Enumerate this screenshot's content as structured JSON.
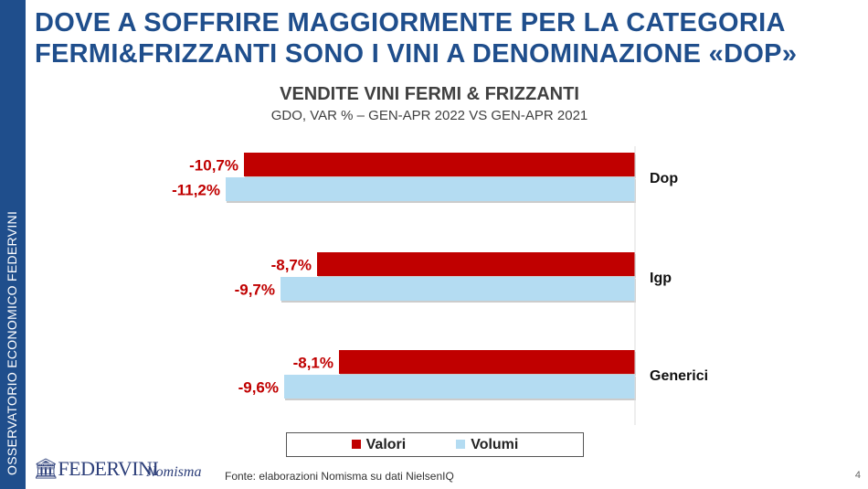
{
  "sidebar": {
    "text": "OSSERVATORIO ECONOMICO  FEDERVINI"
  },
  "header": {
    "title_line1": "DOVE A SOFFRIRE MAGGIORMENTE PER LA CATEGORIA",
    "title_line2": "FERMI&FRIZZANTI SONO I VINI A DENOMINAZIONE «DOP»"
  },
  "footer": {
    "source": "Fonte: elaborazioni Nomisma su dati NielsenIQ",
    "page": "4",
    "logo1": "FEDERVINI",
    "logo2": "Nomisma"
  },
  "chart_data": {
    "type": "bar",
    "orientation": "horizontal",
    "title": "VENDITE VINI FERMI & FRIZZANTI",
    "subtitle": "GDO, VAR % – GEN-APR 2022 VS GEN-APR 2021",
    "categories": [
      "Dop",
      "Igp",
      "Generici"
    ],
    "series": [
      {
        "name": "Valori",
        "color": "#c00000",
        "values": [
          -10.7,
          -8.7,
          -8.1
        ],
        "labels": [
          "-10,7%",
          "-8,7%",
          "-8,1%"
        ]
      },
      {
        "name": "Volumi",
        "color": "#b4dcf2",
        "values": [
          -11.2,
          -9.7,
          -9.6
        ],
        "labels": [
          "-11,2%",
          "-9,7%",
          "-9,6%"
        ]
      }
    ],
    "label_color": "#c00000",
    "legend": "bottom",
    "grid": false
  }
}
